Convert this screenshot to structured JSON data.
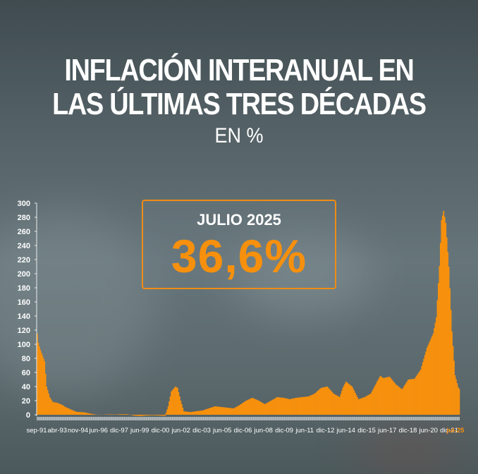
{
  "header": {
    "title_line1": "INFLACIÓN INTERANUAL EN",
    "title_line2": "LAS ÚLTIMAS TRES DÉCADAS",
    "subtitle": "EN %"
  },
  "callout": {
    "label": "JULIO 2025",
    "value": "36,6%"
  },
  "colors": {
    "bar": "#f7900d",
    "callout_border": "#f08c14",
    "highlight_label": "#f7900d",
    "text": "#ffffff"
  },
  "chart_data": {
    "type": "bar",
    "title": "INFLACIÓN INTERANUAL EN LAS ÚLTIMAS TRES DÉCADAS",
    "subtitle": "EN %",
    "xlabel": "",
    "ylabel": "%",
    "ylim": [
      0,
      300
    ],
    "yticks": [
      0,
      20,
      40,
      60,
      80,
      100,
      120,
      140,
      160,
      180,
      200,
      220,
      240,
      260,
      280,
      300
    ],
    "grid": false,
    "legend": null,
    "xtick_labels": [
      "sep-91",
      "abr-93",
      "nov-94",
      "jun-96",
      "dic-97",
      "jun-99",
      "dic-00",
      "jun-02",
      "dic-03",
      "jun-05",
      "dic-06",
      "jun-08",
      "dic-09",
      "jun-11",
      "dic-12",
      "jun-14",
      "dic-15",
      "jun-17",
      "dic-18",
      "jun-20",
      "dic-21",
      "jul-25"
    ],
    "highlighted_tick": "jul-25",
    "annotation": {
      "label": "JULIO 2025",
      "value": 36.6
    },
    "series": [
      {
        "name": "Inflación interanual (%)",
        "points": [
          [
            "sep-91",
            115
          ],
          [
            "oct-91",
            102
          ],
          [
            "dic-91",
            92
          ],
          [
            "feb-92",
            84
          ],
          [
            "abr-92",
            76
          ],
          [
            "jun-92",
            40
          ],
          [
            "sep-92",
            25
          ],
          [
            "dic-92",
            18
          ],
          [
            "abr-93",
            17
          ],
          [
            "sep-93",
            14
          ],
          [
            "dic-93",
            11
          ],
          [
            "jun-94",
            7
          ],
          [
            "nov-94",
            4
          ],
          [
            "jun-95",
            3.5
          ],
          [
            "dic-95",
            1.6
          ],
          [
            "jun-96",
            0.2
          ],
          [
            "dic-96",
            0.1
          ],
          [
            "jun-97",
            0.5
          ],
          [
            "dic-97",
            0.3
          ],
          [
            "jun-98",
            0.8
          ],
          [
            "dic-98",
            0.7
          ],
          [
            "jun-99",
            -1.2
          ],
          [
            "dic-99",
            -1.8
          ],
          [
            "jun-00",
            -1
          ],
          [
            "dic-00",
            -0.7
          ],
          [
            "jun-01",
            -1
          ],
          [
            "dic-01",
            -1.5
          ],
          [
            "mar-02",
            12
          ],
          [
            "jun-02",
            33
          ],
          [
            "oct-02",
            40
          ],
          [
            "dic-02",
            38
          ],
          [
            "mar-03",
            20
          ],
          [
            "jun-03",
            5
          ],
          [
            "dic-03",
            3.7
          ],
          [
            "jun-04",
            5
          ],
          [
            "dic-04",
            6
          ],
          [
            "jun-05",
            9
          ],
          [
            "dic-05",
            12
          ],
          [
            "jun-06",
            11
          ],
          [
            "dic-06",
            10
          ],
          [
            "jun-07",
            9
          ],
          [
            "dic-07",
            14
          ],
          [
            "jun-08",
            20
          ],
          [
            "dic-08",
            24
          ],
          [
            "jun-09",
            20
          ],
          [
            "dic-09",
            15
          ],
          [
            "jun-10",
            20
          ],
          [
            "dic-10",
            25
          ],
          [
            "jun-11",
            24
          ],
          [
            "dic-11",
            22
          ],
          [
            "jun-12",
            24
          ],
          [
            "dic-12",
            25
          ],
          [
            "jun-13",
            26
          ],
          [
            "dic-13",
            30
          ],
          [
            "jun-14",
            38
          ],
          [
            "dic-14",
            40
          ],
          [
            "jun-15",
            30
          ],
          [
            "dic-15",
            25
          ],
          [
            "mar-16",
            38
          ],
          [
            "jun-16",
            47
          ],
          [
            "dic-16",
            40
          ],
          [
            "jun-17",
            22
          ],
          [
            "dic-17",
            25
          ],
          [
            "jun-18",
            30
          ],
          [
            "dic-18",
            47
          ],
          [
            "mar-19",
            55
          ],
          [
            "jun-19",
            52
          ],
          [
            "dic-19",
            54
          ],
          [
            "jun-20",
            43
          ],
          [
            "dic-20",
            36
          ],
          [
            "jun-21",
            50
          ],
          [
            "dic-21",
            51
          ],
          [
            "jun-22",
            64
          ],
          [
            "dic-22",
            95
          ],
          [
            "jun-23",
            115
          ],
          [
            "sep-23",
            138
          ],
          [
            "dic-23",
            211
          ],
          [
            "feb-24",
            276
          ],
          [
            "abr-24",
            289
          ],
          [
            "jun-24",
            272
          ],
          [
            "sep-24",
            210
          ],
          [
            "dic-24",
            118
          ],
          [
            "mar-25",
            56
          ],
          [
            "jun-25",
            39
          ],
          [
            "jul-25",
            36.6
          ]
        ]
      }
    ]
  }
}
